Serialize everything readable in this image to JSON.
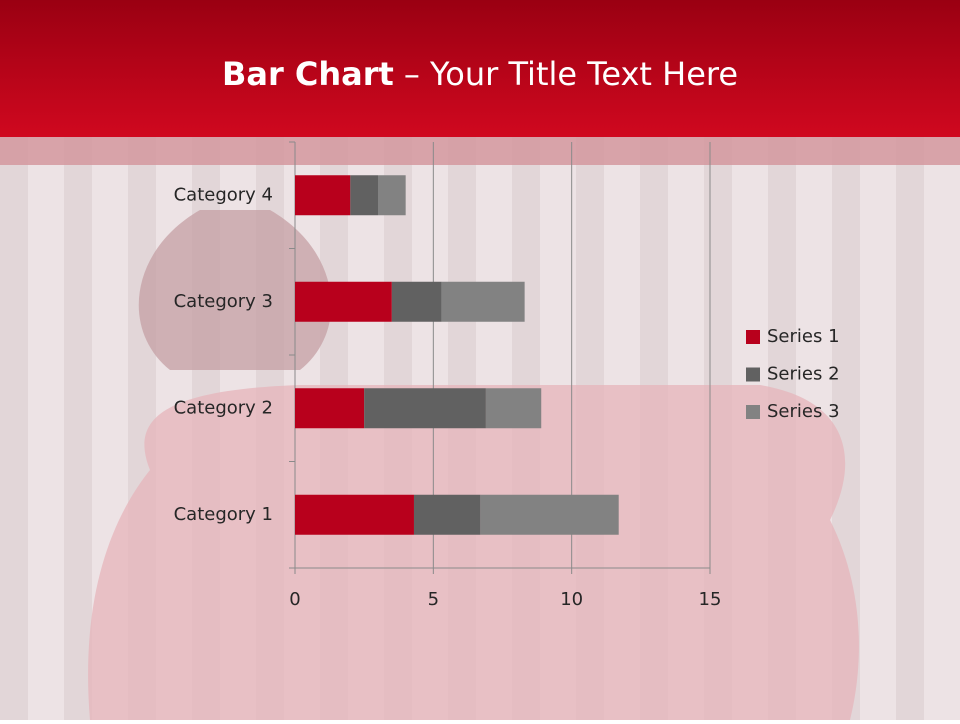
{
  "chart_data": {
    "type": "stacked_bar_horizontal",
    "title_bold": "Bar Chart",
    "title": "– Your Title Text Here",
    "categories": [
      "Category 1",
      "Category 2",
      "Category 3",
      "Category 4"
    ],
    "series": [
      {
        "name": "Series 1",
        "color": "#b8001c",
        "values": [
          4.3,
          2.5,
          3.5,
          2
        ]
      },
      {
        "name": "Series 2",
        "color": "#616161",
        "values": [
          2.4,
          4.4,
          1.8,
          1
        ]
      },
      {
        "name": "Series 3",
        "color": "#828282",
        "values": [
          5,
          2,
          3,
          1
        ]
      }
    ],
    "xlim": [
      0,
      15
    ],
    "xticks": [
      0,
      5,
      10,
      15
    ],
    "grid": true,
    "legend": "right"
  }
}
